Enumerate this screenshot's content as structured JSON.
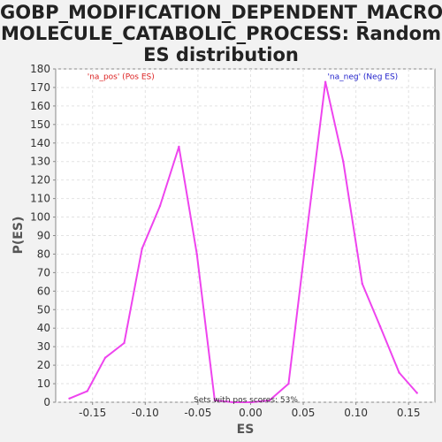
{
  "chart_data": {
    "type": "line",
    "title_lines": [
      "GOBP_MODIFICATION_DEPENDENT_MACRO",
      "MOLECULE_CATABOLIC_PROCESS: Random",
      "ES distribution"
    ],
    "xlabel": "ES",
    "ylabel": "P(ES)",
    "xlim": [
      -0.185,
      0.175
    ],
    "ylim": [
      0,
      180
    ],
    "xticks": [
      -0.15,
      -0.1,
      -0.05,
      0.0,
      0.05,
      0.1,
      0.15
    ],
    "xtick_labels": [
      "-0.15",
      "-0.10",
      "-0.05",
      "0.00",
      "0.05",
      "0.10",
      "0.15"
    ],
    "yticks": [
      0,
      10,
      20,
      30,
      40,
      50,
      60,
      70,
      80,
      90,
      100,
      110,
      120,
      130,
      140,
      150,
      160,
      170,
      180
    ],
    "grid": true,
    "series": [
      {
        "color": "#ee44ee",
        "x": [
          -0.172,
          -0.155,
          -0.138,
          -0.12,
          -0.103,
          -0.086,
          -0.068,
          -0.051,
          -0.034,
          -0.017,
          0.001,
          0.018,
          0.036,
          0.053,
          0.071,
          0.088,
          0.106,
          0.123,
          0.141,
          0.158
        ],
        "y": [
          2,
          6,
          24,
          32,
          83,
          106,
          138,
          80,
          1,
          0,
          0,
          1,
          10,
          90,
          173,
          130,
          64,
          41,
          16,
          5
        ]
      }
    ],
    "annotations": [
      {
        "text": "'na_pos' (Pos ES)",
        "x": -0.155,
        "y": 176,
        "color": "#dd2222"
      },
      {
        "text": "'na_neg' (Neg ES)",
        "x": 0.073,
        "y": 176,
        "color": "#2222cc"
      },
      {
        "text": "Sets with pos scores: 53%",
        "x": -0.054,
        "y": 1.5,
        "color": "#333333"
      }
    ]
  }
}
